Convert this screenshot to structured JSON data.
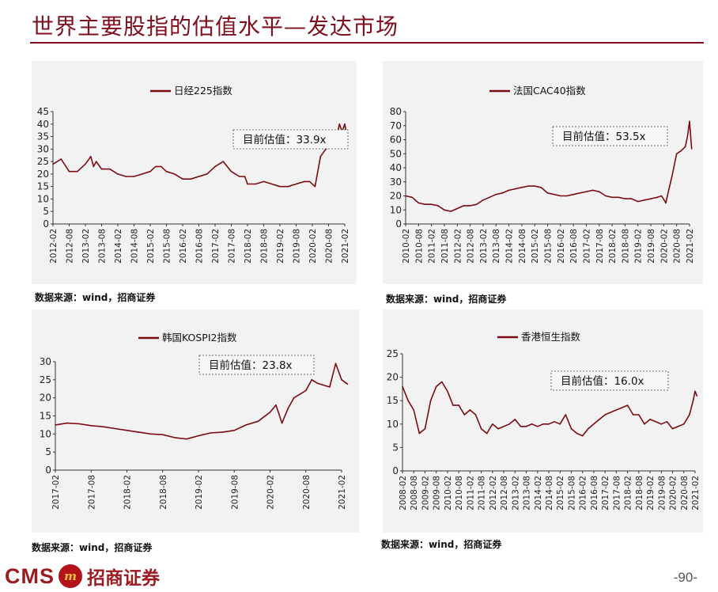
{
  "page": {
    "title": "世界主要股指的估值水平—发达市场",
    "page_number": "-90-",
    "logo_text": "CMS",
    "logo_cn": "招商证券",
    "colors": {
      "accent": "#7f0f1e",
      "series": "#7a0c12",
      "panel_bg": "#f2f2f2"
    }
  },
  "chart_data": [
    {
      "type": "line",
      "legend": "日经225指数",
      "annotation": "目前估值：33.9x",
      "source": "数据来源：wind，招商证券",
      "x_ticks": [
        "2012-02",
        "2012-08",
        "2013-02",
        "2013-08",
        "2014-02",
        "2014-08",
        "2015-02",
        "2015-08",
        "2016-02",
        "2016-08",
        "2017-02",
        "2017-08",
        "2018-02",
        "2018-08",
        "2019-02",
        "2019-08",
        "2020-02",
        "2020-08",
        "2021-02"
      ],
      "y_ticks": [
        0,
        5,
        10,
        15,
        20,
        25,
        30,
        35,
        40,
        45
      ],
      "ylim": [
        0,
        45
      ],
      "x": [
        "2012-02",
        "2012-05",
        "2012-08",
        "2012-11",
        "2013-02",
        "2013-04",
        "2013-05",
        "2013-06",
        "2013-08",
        "2013-11",
        "2014-02",
        "2014-05",
        "2014-08",
        "2014-11",
        "2015-02",
        "2015-04",
        "2015-06",
        "2015-08",
        "2015-11",
        "2016-02",
        "2016-05",
        "2016-08",
        "2016-11",
        "2017-02",
        "2017-05",
        "2017-08",
        "2017-11",
        "2018-01",
        "2018-02",
        "2018-05",
        "2018-08",
        "2018-11",
        "2019-02",
        "2019-05",
        "2019-08",
        "2019-11",
        "2020-01",
        "2020-03",
        "2020-05",
        "2020-07",
        "2020-09",
        "2020-11",
        "2020-12",
        "2021-01",
        "2021-02",
        "2021-03"
      ],
      "values": [
        24,
        26,
        21,
        21,
        24,
        27,
        23,
        25,
        22,
        22,
        20,
        19,
        19,
        20,
        21,
        23,
        23,
        21,
        20,
        18,
        18,
        19,
        20,
        23,
        25,
        21,
        19,
        19,
        16,
        16,
        17,
        16,
        15,
        15,
        16,
        17,
        17,
        15,
        27,
        30,
        31,
        35,
        40,
        37,
        40,
        33.9
      ]
    },
    {
      "type": "line",
      "legend": "法国CAC40指数",
      "annotation": "目前估值：53.5x",
      "source": "数据来源：wind，招商证券",
      "x_ticks": [
        "2010-02",
        "2010-08",
        "2011-02",
        "2011-08",
        "2012-02",
        "2012-08",
        "2013-02",
        "2013-08",
        "2014-02",
        "2014-08",
        "2015-02",
        "2015-08",
        "2016-02",
        "2016-08",
        "2017-02",
        "2017-08",
        "2018-02",
        "2018-08",
        "2019-02",
        "2019-08",
        "2020-02",
        "2020-08",
        "2021-02"
      ],
      "y_ticks": [
        0,
        10,
        20,
        30,
        40,
        50,
        60,
        70,
        80
      ],
      "ylim": [
        0,
        80
      ],
      "x": [
        "2010-02",
        "2010-05",
        "2010-08",
        "2010-11",
        "2011-02",
        "2011-05",
        "2011-08",
        "2011-11",
        "2012-02",
        "2012-05",
        "2012-08",
        "2012-11",
        "2013-02",
        "2013-05",
        "2013-08",
        "2013-11",
        "2014-02",
        "2014-05",
        "2014-08",
        "2014-11",
        "2015-02",
        "2015-05",
        "2015-08",
        "2015-11",
        "2016-02",
        "2016-05",
        "2016-08",
        "2016-11",
        "2017-02",
        "2017-05",
        "2017-08",
        "2017-11",
        "2018-02",
        "2018-05",
        "2018-08",
        "2018-11",
        "2019-02",
        "2019-05",
        "2019-08",
        "2019-11",
        "2020-01",
        "2020-03",
        "2020-04",
        "2020-06",
        "2020-08",
        "2020-10",
        "2020-12",
        "2021-01",
        "2021-02",
        "2021-03"
      ],
      "values": [
        20,
        19,
        15,
        14,
        14,
        13,
        10,
        9,
        11,
        13,
        13,
        14,
        17,
        19,
        21,
        22,
        24,
        25,
        26,
        27,
        27,
        26,
        22,
        21,
        20,
        20,
        21,
        22,
        23,
        24,
        23,
        20,
        19,
        19,
        18,
        18,
        16,
        17,
        18,
        19,
        20,
        15,
        22,
        35,
        50,
        52,
        55,
        62,
        73,
        53.5
      ]
    },
    {
      "type": "line",
      "legend": "韩国KOSPI2指数",
      "annotation": "目前估值：23.8x",
      "source": "数据来源：wind，招商证券",
      "x_ticks": [
        "2017-02",
        "2017-08",
        "2018-02",
        "2018-08",
        "2019-02",
        "2019-08",
        "2020-02",
        "2020-08",
        "2021-02"
      ],
      "y_ticks": [
        0,
        5,
        10,
        15,
        20,
        25,
        30
      ],
      "ylim": [
        0,
        30
      ],
      "x": [
        "2017-02",
        "2017-04",
        "2017-06",
        "2017-08",
        "2017-10",
        "2017-12",
        "2018-02",
        "2018-04",
        "2018-06",
        "2018-08",
        "2018-10",
        "2018-12",
        "2019-02",
        "2019-04",
        "2019-06",
        "2019-08",
        "2019-10",
        "2019-12",
        "2020-02",
        "2020-03",
        "2020-04",
        "2020-05",
        "2020-06",
        "2020-08",
        "2020-09",
        "2020-10",
        "2020-12",
        "2021-01",
        "2021-02",
        "2021-03"
      ],
      "values": [
        12.5,
        13,
        12.8,
        12.3,
        12,
        11.5,
        11,
        10.5,
        10,
        9.8,
        9,
        8.6,
        9.5,
        10.3,
        10.5,
        11,
        12.5,
        13.5,
        16,
        18,
        13,
        17,
        20,
        22,
        25,
        24,
        23,
        29.5,
        25,
        23.8
      ]
    },
    {
      "type": "line",
      "legend": "香港恒生指数",
      "annotation": "目前估值：16.0x",
      "source": "数据来源：wind，招商证券",
      "x_ticks": [
        "2008-02",
        "2008-08",
        "2009-02",
        "2009-08",
        "2010-02",
        "2010-08",
        "2011-02",
        "2011-08",
        "2012-02",
        "2012-08",
        "2013-02",
        "2013-08",
        "2014-02",
        "2014-08",
        "2015-02",
        "2015-08",
        "2016-02",
        "2016-08",
        "2017-02",
        "2017-08",
        "2018-02",
        "2018-08",
        "2019-02",
        "2019-08",
        "2020-02",
        "2020-08",
        "2021-02"
      ],
      "y_ticks": [
        0,
        5,
        10,
        15,
        20,
        25
      ],
      "ylim": [
        0,
        25
      ],
      "x": [
        "2008-02",
        "2008-05",
        "2008-08",
        "2008-11",
        "2009-02",
        "2009-05",
        "2009-08",
        "2009-11",
        "2010-02",
        "2010-05",
        "2010-08",
        "2010-11",
        "2011-02",
        "2011-05",
        "2011-08",
        "2011-11",
        "2012-02",
        "2012-05",
        "2012-08",
        "2012-11",
        "2013-02",
        "2013-05",
        "2013-08",
        "2013-11",
        "2014-02",
        "2014-05",
        "2014-08",
        "2014-11",
        "2015-02",
        "2015-05",
        "2015-08",
        "2015-11",
        "2016-02",
        "2016-05",
        "2016-08",
        "2016-11",
        "2017-02",
        "2017-05",
        "2017-08",
        "2017-11",
        "2018-02",
        "2018-05",
        "2018-08",
        "2018-11",
        "2019-02",
        "2019-05",
        "2019-08",
        "2019-11",
        "2020-02",
        "2020-05",
        "2020-08",
        "2020-11",
        "2021-01",
        "2021-02",
        "2021-03"
      ],
      "values": [
        18,
        15,
        13,
        8,
        9,
        15,
        18,
        19,
        17,
        14,
        14,
        12,
        13,
        12,
        9,
        8,
        10,
        9,
        9.5,
        10,
        11,
        9.5,
        9.5,
        10,
        9.5,
        10,
        10,
        10.5,
        10,
        12,
        9,
        8,
        7.5,
        9,
        10,
        11,
        12,
        12.5,
        13,
        13.5,
        14,
        12,
        12,
        10,
        11,
        10.5,
        10,
        10.5,
        9,
        9.5,
        10,
        12,
        15,
        17,
        16
      ]
    }
  ]
}
